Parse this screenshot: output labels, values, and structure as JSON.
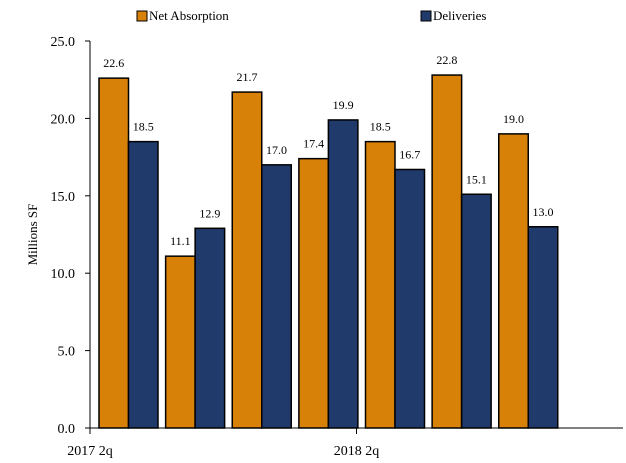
{
  "chart_data": {
    "type": "bar",
    "categories": [
      "2017 2q",
      "",
      "",
      "",
      "2018 2q",
      "",
      "",
      ""
    ],
    "series": [
      {
        "name": "Net Absorption",
        "color": "#d88109",
        "values": [
          22.6,
          11.1,
          21.7,
          17.4,
          18.5,
          22.8,
          19.0,
          null
        ]
      },
      {
        "name": "Deliveries",
        "color": "#1f3a6b",
        "values": [
          18.5,
          12.9,
          17.0,
          19.9,
          16.7,
          15.1,
          13.0,
          null
        ]
      }
    ],
    "data_labels": [
      [
        "22.6",
        "11.1",
        "21.7",
        "17.4",
        "18.5",
        "22.8",
        "19.0",
        ""
      ],
      [
        "18.5",
        "12.9",
        "17.0",
        "19.9",
        "16.7",
        "15.1",
        "13.0",
        ""
      ]
    ],
    "ylabel": "Millions SF",
    "ylim": [
      0,
      25
    ],
    "yticks": [
      "0.0",
      "5.0",
      "10.0",
      "15.0",
      "20.0",
      "25.0"
    ],
    "legend_position": "top",
    "grid": false
  }
}
